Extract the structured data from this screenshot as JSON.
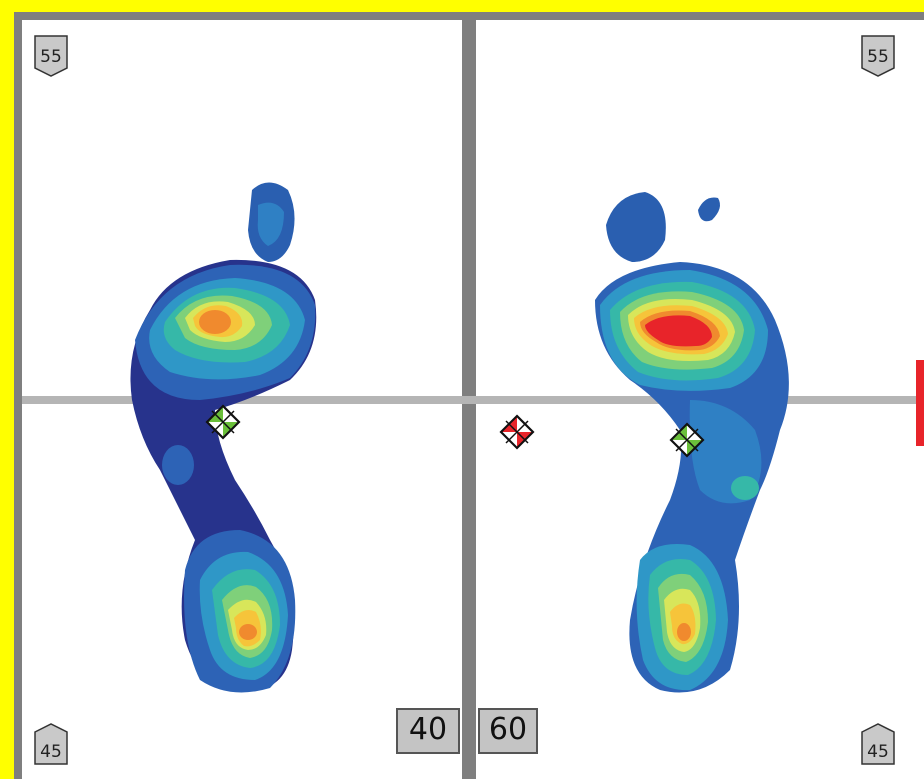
{
  "plate": {
    "left": {
      "top_size_badge": "55",
      "bottom_size_badge": "45",
      "load_percent": "40"
    },
    "right": {
      "top_size_badge": "55",
      "bottom_size_badge": "45",
      "load_percent": "60"
    }
  },
  "colors": {
    "background": "#ffff00",
    "frame": "#7f7f7f",
    "axis": "#b0b0b0",
    "pressure_low": "#26338f",
    "pressure_mid": "#2f96c8",
    "pressure_high": "#e8242a"
  },
  "icons": {
    "center_of_pressure_left": "cop-marker-icon",
    "center_of_pressure_right": "cop-marker-icon",
    "body_center_of_gravity": "cog-marker-icon"
  }
}
